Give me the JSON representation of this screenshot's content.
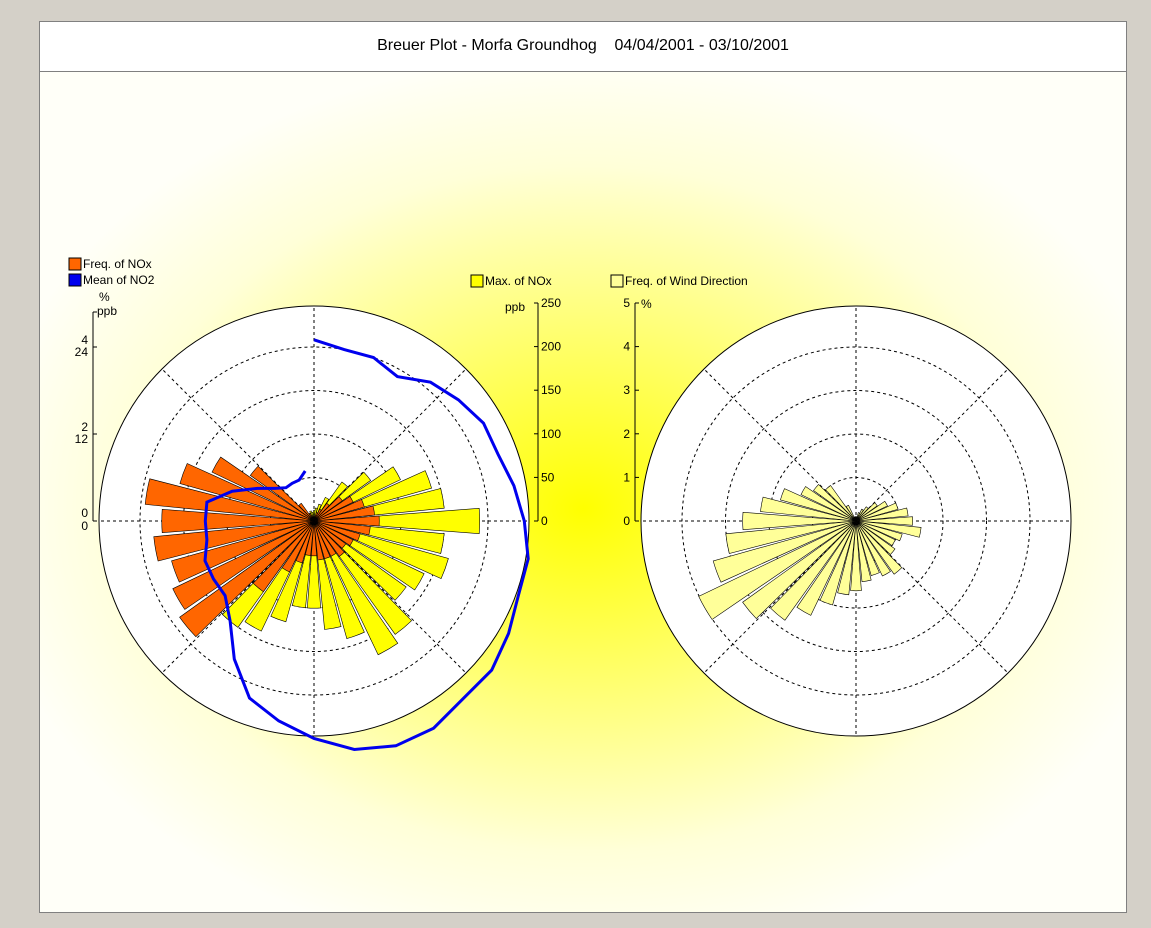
{
  "header": {
    "title": "Breuer Plot - Morfa Groundhog",
    "date_range": "04/04/2001 - 03/10/2001"
  },
  "colors": {
    "freq_nox": "#ff6600",
    "mean_no2": "#0000ee",
    "max_nox": "#ffff00",
    "freq_wind": "#ffff99"
  },
  "chart_data": [
    {
      "type": "polar-bar",
      "title": "Breuer Plot - Morfa Groundhog",
      "legend": [
        {
          "name": "Freq. of NOx",
          "color": "#ff6600"
        },
        {
          "name": "Mean of NO2",
          "color": "#0000ee"
        },
        {
          "name": "Max. of NOx",
          "color": "#ffff00"
        }
      ],
      "left_axis": {
        "unit_top": "%",
        "unit_bottom": "ppb",
        "ticks_pct": [
          "0",
          "2",
          "4"
        ],
        "ticks_ppb": [
          "0",
          "12",
          "24"
        ]
      },
      "right_axis": {
        "unit": "ppb",
        "ticks": [
          "0",
          "50",
          "100",
          "150",
          "200",
          "250"
        ],
        "range": [
          0,
          250
        ]
      },
      "direction_step_deg": 10,
      "directions_deg": [
        0,
        10,
        20,
        30,
        40,
        50,
        60,
        70,
        80,
        90,
        100,
        110,
        120,
        130,
        140,
        150,
        160,
        170,
        180,
        190,
        200,
        210,
        220,
        230,
        240,
        250,
        260,
        270,
        280,
        290,
        300,
        310,
        320,
        330,
        340,
        350
      ],
      "series": [
        {
          "name": "Max. of NOx",
          "unit": "ppb",
          "values": [
            12,
            15,
            20,
            30,
            55,
            80,
            110,
            140,
            150,
            190,
            150,
            160,
            140,
            130,
            160,
            170,
            140,
            125,
            100,
            100,
            120,
            140,
            150,
            110,
            90,
            70,
            50,
            40,
            30,
            20,
            15,
            10,
            10,
            10,
            12,
            10
          ]
        },
        {
          "name": "Freq. of NOx",
          "unit": "%",
          "values": [
            0.1,
            0.1,
            0.2,
            0.3,
            0.5,
            0.8,
            1.0,
            1.2,
            1.4,
            1.5,
            1.3,
            1.1,
            1.0,
            0.9,
            1.0,
            0.9,
            0.9,
            0.9,
            0.8,
            0.8,
            1.0,
            1.3,
            2.0,
            3.8,
            3.6,
            3.4,
            3.7,
            3.5,
            3.9,
            3.2,
            2.6,
            1.8,
            0.5,
            0.2,
            0.1,
            0.1
          ]
        },
        {
          "name": "Mean of NO2",
          "unit": "ppb",
          "values": [
            25,
            24,
            24,
            23,
            25,
            26,
            27,
            27,
            28,
            29,
            30,
            30,
            31,
            32,
            32,
            33,
            33,
            32,
            30,
            28,
            26,
            22,
            18,
            16,
            16,
            16,
            15,
            15,
            15,
            12,
            9,
            7,
            6,
            6,
            6,
            7
          ]
        }
      ]
    },
    {
      "type": "polar-bar",
      "legend": [
        {
          "name": "Freq. of Wind Direction",
          "color": "#ffff99"
        }
      ],
      "axis": {
        "unit": "%",
        "ticks": [
          "0",
          "1",
          "2",
          "3",
          "4",
          "5"
        ],
        "range": [
          0,
          5
        ]
      },
      "direction_step_deg": 10,
      "series": [
        {
          "name": "Freq. of Wind Direction",
          "unit": "%",
          "values": [
            0.1,
            0.1,
            0.2,
            0.3,
            0.4,
            0.6,
            0.8,
            1.0,
            1.2,
            1.3,
            1.5,
            1.1,
            1.0,
            1.1,
            1.5,
            1.4,
            1.3,
            1.4,
            1.6,
            1.7,
            2.0,
            2.4,
            2.8,
            3.2,
            4.0,
            3.4,
            3.0,
            2.6,
            2.2,
            1.8,
            1.4,
            1.2,
            1.0,
            0.4,
            0.1,
            0.1
          ]
        }
      ]
    }
  ]
}
